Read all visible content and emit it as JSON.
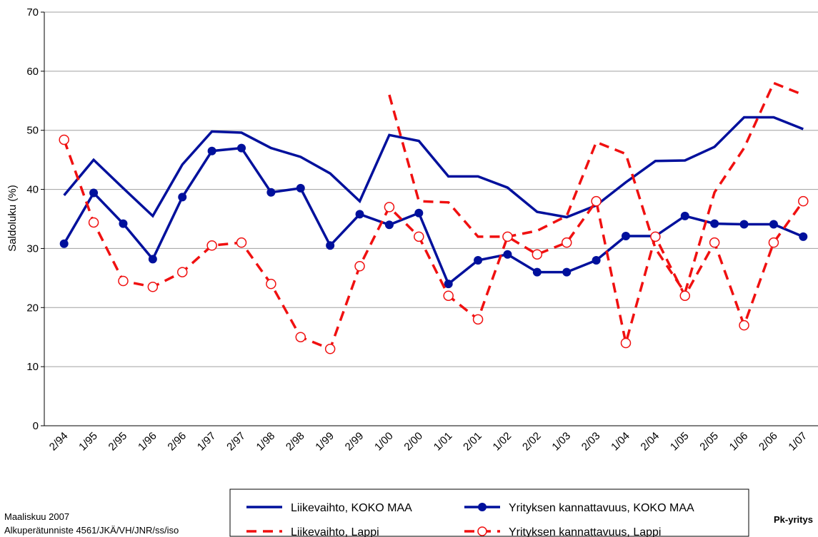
{
  "chart_data": {
    "type": "line",
    "y_label": "Saldoluku (%)",
    "categories": [
      "2/94",
      "1/95",
      "2/95",
      "1/96",
      "2/96",
      "1/97",
      "2/97",
      "1/98",
      "2/98",
      "1/99",
      "2/99",
      "1/00",
      "2/00",
      "1/01",
      "2/01",
      "1/02",
      "2/02",
      "1/03",
      "2/03",
      "1/04",
      "2/04",
      "1/05",
      "2/05",
      "1/06",
      "2/06",
      "1/07"
    ],
    "series": [
      {
        "name": "Liikevaihto, KOKO MAA",
        "color": "#00109c",
        "dash": false,
        "marker": "none",
        "values": [
          39,
          45,
          40.2,
          35.5,
          44.2,
          49.8,
          49.6,
          47,
          45.5,
          42.7,
          38,
          49.2,
          48.2,
          42.2,
          42.2,
          40.3,
          36.2,
          35.3,
          37.3,
          41.2,
          44.8,
          44.9,
          47.2,
          52.2,
          52.2,
          50.2
        ]
      },
      {
        "name": "Yrityksen kannattavuus, KOKO MAA",
        "color": "#00109c",
        "dash": false,
        "marker": "filled",
        "values": [
          30.8,
          39.4,
          34.2,
          28.2,
          38.7,
          46.5,
          47,
          39.5,
          40.2,
          30.5,
          35.8,
          34,
          36,
          24,
          28,
          29,
          26,
          26,
          28,
          32.1,
          32.1,
          35.5,
          34.2,
          34.1,
          34.1,
          32
        ]
      },
      {
        "name": "Liikevaihto, Lappi",
        "color": "#f01010",
        "dash": true,
        "marker": "none",
        "values": [
          null,
          null,
          null,
          null,
          null,
          null,
          null,
          null,
          null,
          null,
          null,
          56,
          38,
          37.8,
          32,
          32,
          33,
          35.5,
          48,
          46,
          30,
          22.5,
          39.5,
          47,
          58,
          56
        ]
      },
      {
        "name": "Yrityksen kannattavuus, Lappi",
        "color": "#f01010",
        "dash": true,
        "marker": "open",
        "values": [
          48.4,
          34.4,
          24.5,
          23.5,
          26,
          30.5,
          31,
          24,
          15,
          13,
          27,
          37,
          32,
          22,
          18,
          32,
          29,
          31,
          38,
          14,
          32,
          22,
          31,
          17,
          31,
          38
        ]
      }
    ],
    "ylim": [
      0,
      70
    ],
    "yticks": [
      0,
      10,
      20,
      30,
      40,
      50,
      60,
      70
    ],
    "grid": true,
    "footer": [
      "Maaliskuu 2007",
      "Alkuperätunniste 4561/JKÄ/VH/JNR/ss/iso"
    ],
    "brand": "Pk-yritys"
  }
}
